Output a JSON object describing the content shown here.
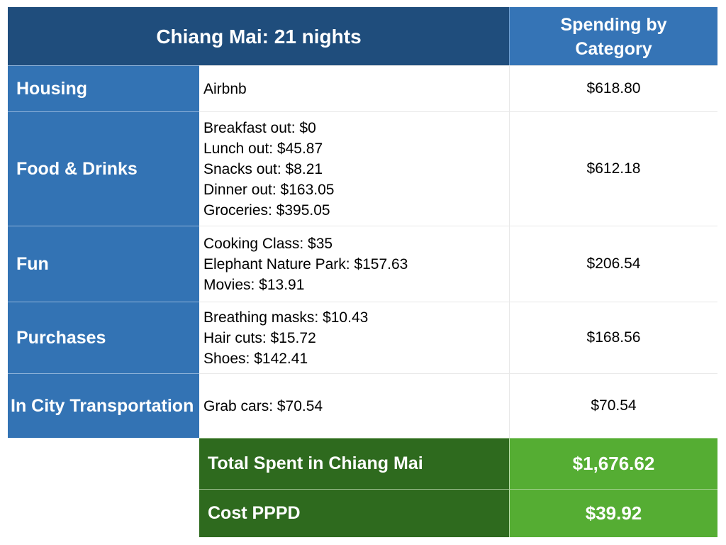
{
  "header": {
    "title": "Chiang Mai: 21 nights",
    "category_header": "Spending by Category"
  },
  "rows": [
    {
      "category": "Housing",
      "items": [
        "Airbnb"
      ],
      "amount": "$618.80"
    },
    {
      "category": "Food & Drinks",
      "items": [
        "Breakfast out: $0",
        "Lunch out: $45.87",
        "Snacks out: $8.21",
        "Dinner out: $163.05",
        "Groceries: $395.05"
      ],
      "amount": "$612.18"
    },
    {
      "category": "Fun",
      "items": [
        "Cooking Class: $35",
        "Elephant Nature Park: $157.63",
        "Movies: $13.91"
      ],
      "amount": "$206.54"
    },
    {
      "category": "Purchases",
      "items": [
        "Breathing masks: $10.43",
        "Hair cuts: $15.72",
        "Shoes: $142.41"
      ],
      "amount": "$168.56"
    },
    {
      "category": "In City Transportation",
      "items": [
        "Grab cars: $70.54"
      ],
      "amount": "$70.54"
    }
  ],
  "totals": [
    {
      "label": "Total Spent in Chiang Mai",
      "value": "$1,676.62"
    },
    {
      "label": "Cost PPPD",
      "value": "$39.92"
    }
  ],
  "colors": {
    "header": "#1f4d7c",
    "category": "#3373b4",
    "total_label": "#2e6a1e",
    "total_value": "#55ad33"
  }
}
